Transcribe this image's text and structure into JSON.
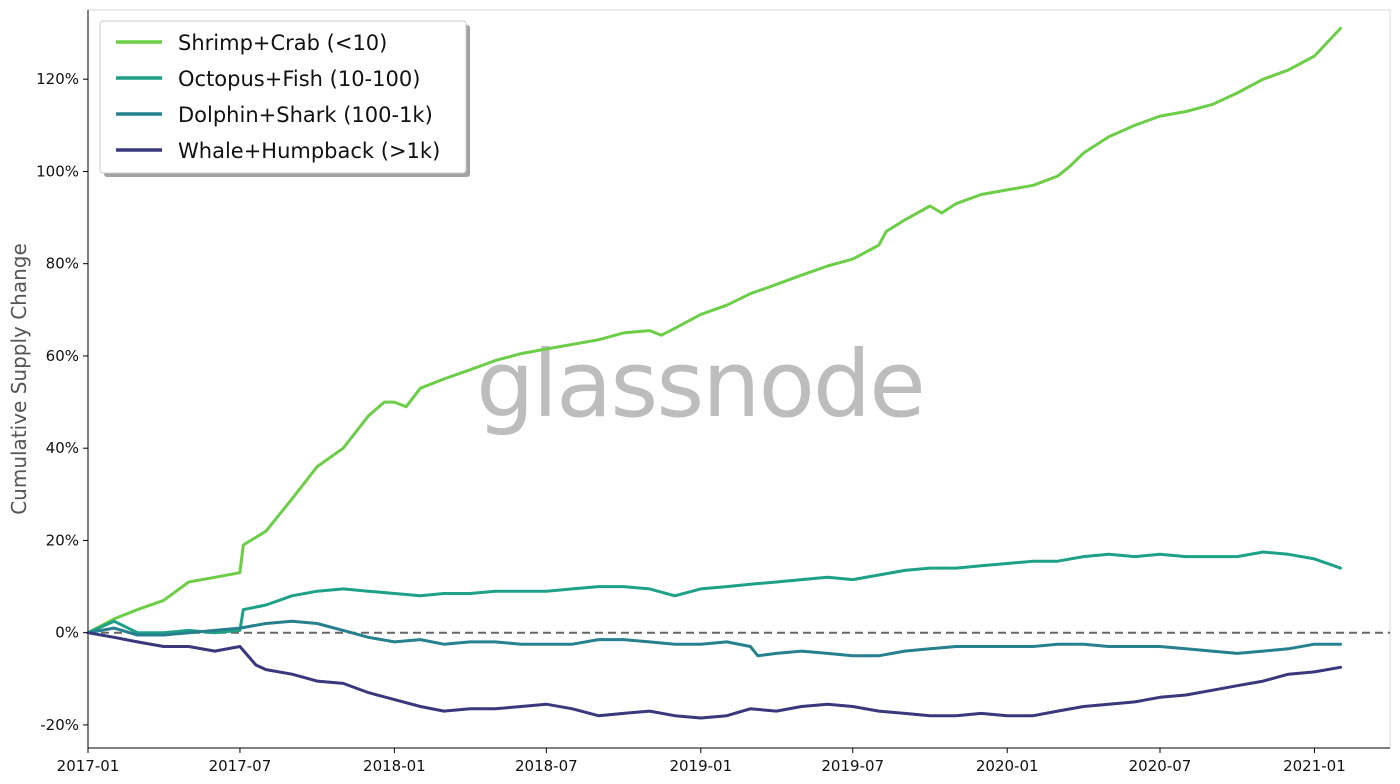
{
  "chart_data": {
    "type": "line",
    "title": "",
    "xlabel": "",
    "ylabel": "Cumulative Supply Change",
    "watermark": "glassnode",
    "xlim": [
      "2017-01-01",
      "2021-04-01"
    ],
    "ylim": [
      -25,
      135
    ],
    "yticks": [
      -20,
      0,
      20,
      40,
      60,
      80,
      100,
      120
    ],
    "ytick_labels": [
      "-20%",
      "0%",
      "20%",
      "40%",
      "60%",
      "80%",
      "100%",
      "120%"
    ],
    "xticks": [
      "2017-01-01",
      "2017-07-01",
      "2018-01-01",
      "2018-07-01",
      "2019-01-01",
      "2019-07-01",
      "2020-01-01",
      "2020-07-01",
      "2021-01-01"
    ],
    "xtick_labels": [
      "2017-01",
      "2017-07",
      "2018-01",
      "2018-07",
      "2019-01",
      "2019-07",
      "2020-01",
      "2020-07",
      "2021-01"
    ],
    "reference_line": {
      "y": 0,
      "style": "dashed",
      "color": "#666666"
    },
    "grid": false,
    "legend_position": "top-left",
    "series": [
      {
        "name": "Shrimp+Crab (<10)",
        "color": "#6cce47",
        "x": [
          "2017-01-01",
          "2017-02-01",
          "2017-03-01",
          "2017-04-01",
          "2017-05-01",
          "2017-06-01",
          "2017-07-01",
          "2017-07-05",
          "2017-08-01",
          "2017-09-01",
          "2017-10-01",
          "2017-11-01",
          "2017-12-01",
          "2017-12-20",
          "2018-01-01",
          "2018-01-15",
          "2018-02-01",
          "2018-03-01",
          "2018-04-01",
          "2018-05-01",
          "2018-06-01",
          "2018-07-01",
          "2018-08-01",
          "2018-09-01",
          "2018-10-01",
          "2018-11-01",
          "2018-11-15",
          "2018-12-01",
          "2019-01-01",
          "2019-02-01",
          "2019-03-01",
          "2019-04-01",
          "2019-05-01",
          "2019-06-01",
          "2019-07-01",
          "2019-08-01",
          "2019-08-10",
          "2019-09-01",
          "2019-10-01",
          "2019-10-15",
          "2019-11-01",
          "2019-12-01",
          "2020-01-01",
          "2020-02-01",
          "2020-03-01",
          "2020-03-15",
          "2020-04-01",
          "2020-05-01",
          "2020-06-01",
          "2020-07-01",
          "2020-08-01",
          "2020-09-01",
          "2020-10-01",
          "2020-11-01",
          "2020-12-01",
          "2021-01-01",
          "2021-02-01"
        ],
        "y": [
          0,
          3,
          5,
          7,
          11,
          12,
          13,
          19,
          22,
          29,
          36,
          40,
          47,
          50,
          50,
          49,
          53,
          55,
          57,
          59,
          60.5,
          61.5,
          62.5,
          63.5,
          65,
          65.5,
          64.5,
          66,
          69,
          71,
          73.5,
          75.5,
          77.5,
          79.5,
          81,
          84,
          87,
          89.5,
          92.5,
          91,
          93,
          95,
          96,
          97,
          99,
          101,
          104,
          107.5,
          110,
          112,
          113,
          114.5,
          117,
          120,
          122,
          125,
          131
        ]
      },
      {
        "name": "Octopus+Fish (10-100)",
        "color": "#1fa187",
        "x": [
          "2017-01-01",
          "2017-02-01",
          "2017-03-01",
          "2017-04-01",
          "2017-05-01",
          "2017-06-01",
          "2017-07-01",
          "2017-07-05",
          "2017-08-01",
          "2017-09-01",
          "2017-10-01",
          "2017-11-01",
          "2017-12-01",
          "2018-01-01",
          "2018-02-01",
          "2018-03-01",
          "2018-04-01",
          "2018-05-01",
          "2018-06-01",
          "2018-07-01",
          "2018-08-01",
          "2018-09-01",
          "2018-10-01",
          "2018-11-01",
          "2018-12-01",
          "2019-01-01",
          "2019-02-01",
          "2019-03-01",
          "2019-04-01",
          "2019-05-01",
          "2019-06-01",
          "2019-07-01",
          "2019-08-01",
          "2019-09-01",
          "2019-10-01",
          "2019-11-01",
          "2019-12-01",
          "2020-01-01",
          "2020-02-01",
          "2020-03-01",
          "2020-04-01",
          "2020-05-01",
          "2020-06-01",
          "2020-07-01",
          "2020-08-01",
          "2020-09-01",
          "2020-10-01",
          "2020-11-01",
          "2020-12-01",
          "2021-01-01",
          "2021-02-01"
        ],
        "y": [
          0,
          2.5,
          0,
          0,
          0.5,
          0,
          0.5,
          5,
          6,
          8,
          9,
          9.5,
          9,
          8.5,
          8,
          8.5,
          8.5,
          9,
          9,
          9,
          9.5,
          10,
          10,
          9.5,
          8,
          9.5,
          10,
          10.5,
          11,
          11.5,
          12,
          11.5,
          12.5,
          13.5,
          14,
          14,
          14.5,
          15,
          15.5,
          15.5,
          16.5,
          17,
          16.5,
          17,
          16.5,
          16.5,
          16.5,
          17.5,
          17,
          16,
          14
        ]
      },
      {
        "name": "Dolphin+Shark (100-1k)",
        "color": "#26808e",
        "x": [
          "2017-01-01",
          "2017-02-01",
          "2017-03-01",
          "2017-04-01",
          "2017-05-01",
          "2017-06-01",
          "2017-07-01",
          "2017-08-01",
          "2017-09-01",
          "2017-10-01",
          "2017-11-01",
          "2017-12-01",
          "2018-01-01",
          "2018-02-01",
          "2018-03-01",
          "2018-04-01",
          "2018-05-01",
          "2018-06-01",
          "2018-07-01",
          "2018-08-01",
          "2018-09-01",
          "2018-10-01",
          "2018-11-01",
          "2018-12-01",
          "2019-01-01",
          "2019-02-01",
          "2019-03-01",
          "2019-03-10",
          "2019-04-01",
          "2019-05-01",
          "2019-06-01",
          "2019-07-01",
          "2019-08-01",
          "2019-09-01",
          "2019-10-01",
          "2019-11-01",
          "2019-12-01",
          "2020-01-01",
          "2020-02-01",
          "2020-03-01",
          "2020-04-01",
          "2020-05-01",
          "2020-06-01",
          "2020-07-01",
          "2020-08-01",
          "2020-09-01",
          "2020-10-01",
          "2020-11-01",
          "2020-12-01",
          "2021-01-01",
          "2021-02-01"
        ],
        "y": [
          0,
          1,
          -0.5,
          -0.5,
          0,
          0.5,
          1,
          2,
          2.5,
          2,
          0.5,
          -1,
          -2,
          -1.5,
          -2.5,
          -2,
          -2,
          -2.5,
          -2.5,
          -2.5,
          -1.5,
          -1.5,
          -2,
          -2.5,
          -2.5,
          -2,
          -3,
          -5,
          -4.5,
          -4,
          -4.5,
          -5,
          -5,
          -4,
          -3.5,
          -3,
          -3,
          -3,
          -3,
          -2.5,
          -2.5,
          -3,
          -3,
          -3,
          -3.5,
          -4,
          -4.5,
          -4,
          -3.5,
          -2.5,
          -2.5
        ]
      },
      {
        "name": "Whale+Humpback (>1k)",
        "color": "#38397c",
        "x": [
          "2017-01-01",
          "2017-02-01",
          "2017-03-01",
          "2017-04-01",
          "2017-05-01",
          "2017-06-01",
          "2017-07-01",
          "2017-07-20",
          "2017-08-01",
          "2017-09-01",
          "2017-10-01",
          "2017-11-01",
          "2017-12-01",
          "2018-01-01",
          "2018-02-01",
          "2018-03-01",
          "2018-04-01",
          "2018-05-01",
          "2018-06-01",
          "2018-07-01",
          "2018-08-01",
          "2018-09-01",
          "2018-10-01",
          "2018-11-01",
          "2018-12-01",
          "2019-01-01",
          "2019-02-01",
          "2019-03-01",
          "2019-04-01",
          "2019-05-01",
          "2019-06-01",
          "2019-07-01",
          "2019-08-01",
          "2019-09-01",
          "2019-10-01",
          "2019-11-01",
          "2019-12-01",
          "2020-01-01",
          "2020-02-01",
          "2020-03-01",
          "2020-04-01",
          "2020-05-01",
          "2020-06-01",
          "2020-07-01",
          "2020-08-01",
          "2020-09-01",
          "2020-10-01",
          "2020-11-01",
          "2020-12-01",
          "2021-01-01",
          "2021-02-01"
        ],
        "y": [
          0,
          -1,
          -2,
          -3,
          -3,
          -4,
          -3,
          -7,
          -8,
          -9,
          -10.5,
          -11,
          -13,
          -14.5,
          -16,
          -17,
          -16.5,
          -16.5,
          -16,
          -15.5,
          -16.5,
          -18,
          -17.5,
          -17,
          -18,
          -18.5,
          -18,
          -16.5,
          -17,
          -16,
          -15.5,
          -16,
          -17,
          -17.5,
          -18,
          -18,
          -17.5,
          -18,
          -18,
          -17,
          -16,
          -15.5,
          -15,
          -14,
          -13.5,
          -12.5,
          -11.5,
          -10.5,
          -9,
          -8.5,
          -7.5
        ]
      }
    ]
  }
}
